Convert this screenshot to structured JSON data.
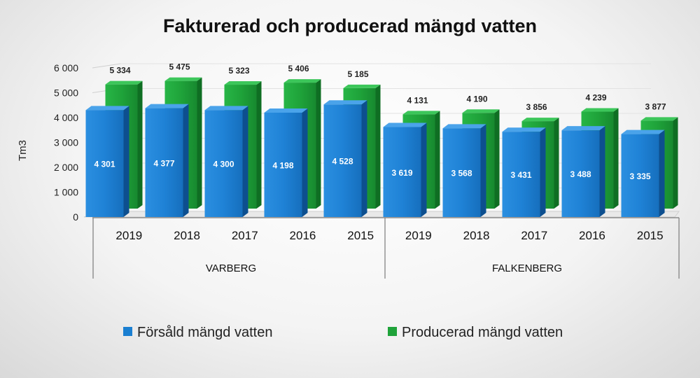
{
  "chart_data": {
    "type": "bar",
    "title": "Fakturerad  och producerad  mängd  vatten",
    "ylabel": "Tm3",
    "xlabel": "",
    "ylim": [
      0,
      6000
    ],
    "yticks": [
      0,
      1000,
      2000,
      3000,
      4000,
      5000,
      6000
    ],
    "ytick_labels": [
      "0",
      "1 000",
      "2 000",
      "3 000",
      "4 000",
      "5 000",
      "6 000"
    ],
    "groups": [
      "VARBERG",
      "FALKENBERG"
    ],
    "categories": [
      "2019",
      "2018",
      "2017",
      "2016",
      "2015",
      "2019",
      "2018",
      "2017",
      "2016",
      "2015"
    ],
    "series": [
      {
        "name": "Försåld mängd vatten",
        "color": "#1a7fd1",
        "values": [
          4301,
          4377,
          4300,
          4198,
          4528,
          3619,
          3568,
          3431,
          3488,
          3335
        ],
        "labels": [
          "4 301",
          "4 377",
          "4 300",
          "4 198",
          "4 528",
          "3 619",
          "3 568",
          "3 431",
          "3 488",
          "3 335"
        ]
      },
      {
        "name": "Producerad mängd vatten",
        "color": "#1fa33a",
        "values": [
          5334,
          5475,
          5323,
          5406,
          5185,
          4131,
          4190,
          3856,
          4239,
          3877
        ],
        "labels": [
          "5 334",
          "5 475",
          "5 323",
          "5 406",
          "5 185",
          "4 131",
          "4 190",
          "3 856",
          "4 239",
          "3 877"
        ]
      }
    ],
    "grid": true,
    "legend_position": "bottom"
  }
}
